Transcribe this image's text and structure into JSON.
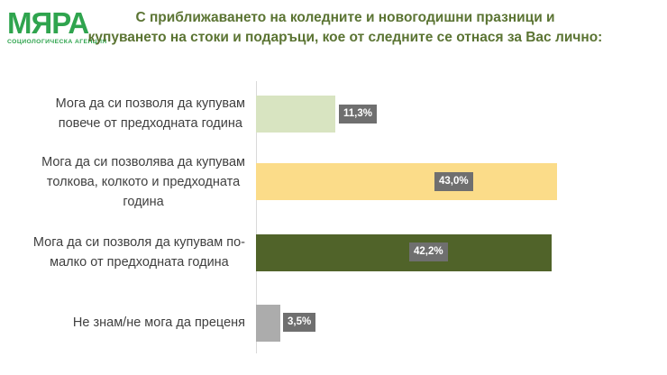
{
  "logo": {
    "name": "МЯРА",
    "subtitle": "СОЦИОЛОГИЧЕСКА АГЕНЦИЯ",
    "color": "#2FA44E"
  },
  "title": {
    "text": "С приближаването на коледните и новогодишни празници и\nкупуването на стоки и подаръци, кое от следните се отнася за Вас лично:",
    "color": "#5B7433"
  },
  "chart_data": {
    "type": "bar",
    "orientation": "horizontal",
    "title": "С приближаването на коледните и новогодишни празници и купуването на стоки и подаръци, кое от следните се отнася за Вас лично:",
    "categories": [
      "Мога да си позволя да купувам повече от предходната година",
      "Мога да си позволява да купувам толкова, колкото и предходната година",
      "Мога да си позволя да купувам по-малко от предходната година",
      "Не знам/не мога да преценя"
    ],
    "categories_display": [
      "Мога да си позволя да купувам\nповече от предходната година",
      "Мога да си позволява да купувам\nтолкова, колкото и предходната\nгодина",
      "Мога да си позволя да купувам по-\nмалко от предходната година",
      "Не знам/не мога да преценя"
    ],
    "values": [
      11.3,
      43.0,
      42.2,
      3.5
    ],
    "values_display": [
      "11,3%",
      "43,0%",
      "42,2%",
      "3,5%"
    ],
    "bar_colors": [
      "#D8E4C1",
      "#FBDC89",
      "#506329",
      "#ACACAC"
    ],
    "value_label_bg": "#6F6F6F",
    "value_label_color": "#FFFFFF",
    "xlabel": "",
    "ylabel": "",
    "legend": "none",
    "grid": "off",
    "axis_line_color": "#D9D9D9"
  }
}
